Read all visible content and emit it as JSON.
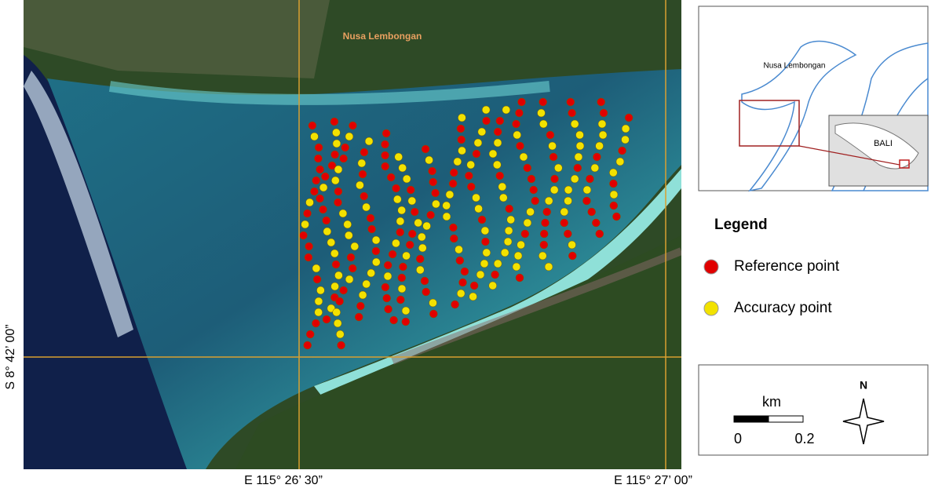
{
  "map": {
    "island_label": "Nusa Lembongan",
    "lat_label": "S 8° 42’ 00”",
    "lon_labels": [
      "E 115° 26’ 30”",
      "E 115° 27’ 00”"
    ]
  },
  "inset": {
    "island_label": "Nusa Lembongan",
    "region_label": "BALI"
  },
  "legend": {
    "title": "Legend",
    "items": [
      {
        "label": "Reference point",
        "color": "#e00000"
      },
      {
        "label": "Accuracy point",
        "color": "#f2e200"
      }
    ]
  },
  "scale": {
    "unit": "km",
    "start": "0",
    "end": "0.2",
    "north": "N"
  }
}
